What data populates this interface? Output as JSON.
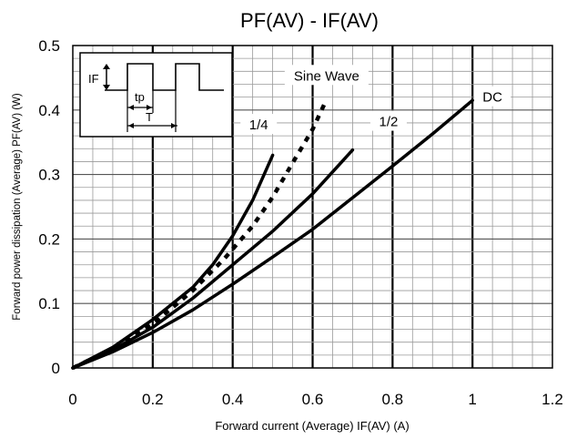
{
  "chart_data": {
    "type": "line",
    "title": "PF(AV) - IF(AV)",
    "xlabel": "Forward current (Average)  IF(AV) (A)",
    "ylabel": "Forward power dissipation (Average)  PF(AV)  (W)",
    "xlim": [
      0,
      1.2
    ],
    "ylim": [
      0,
      0.5
    ],
    "x_ticks": [
      "0",
      "0.2",
      "0.4",
      "0.6",
      "0.8",
      "1",
      "1.2"
    ],
    "y_ticks": [
      "0",
      "0.1",
      "0.2",
      "0.3",
      "0.4",
      "0.5"
    ],
    "grid": true,
    "series": [
      {
        "name": "DC",
        "style": "solid",
        "x": [
          0,
          0.1,
          0.2,
          0.3,
          0.4,
          0.5,
          0.6,
          0.7,
          0.8,
          0.9,
          1.0
        ],
        "y": [
          0,
          0.025,
          0.055,
          0.09,
          0.13,
          0.172,
          0.215,
          0.264,
          0.313,
          0.363,
          0.415
        ]
      },
      {
        "name": "1/2",
        "style": "solid",
        "x": [
          0,
          0.1,
          0.2,
          0.3,
          0.4,
          0.5,
          0.6,
          0.7
        ],
        "y": [
          0,
          0.028,
          0.063,
          0.108,
          0.16,
          0.212,
          0.27,
          0.338
        ]
      },
      {
        "name": "Sine Wave",
        "style": "dotted",
        "x": [
          0,
          0.1,
          0.2,
          0.3,
          0.38,
          0.45,
          0.5,
          0.55,
          0.6,
          0.63
        ],
        "y": [
          0,
          0.03,
          0.068,
          0.12,
          0.17,
          0.22,
          0.265,
          0.318,
          0.37,
          0.41
        ]
      },
      {
        "name": "1/4",
        "style": "solid",
        "x": [
          0,
          0.1,
          0.2,
          0.3,
          0.35,
          0.4,
          0.45,
          0.5
        ],
        "y": [
          0,
          0.032,
          0.075,
          0.125,
          0.16,
          0.205,
          0.26,
          0.33
        ]
      }
    ],
    "inset": {
      "labels": [
        "IF",
        "tp",
        "T"
      ]
    }
  }
}
